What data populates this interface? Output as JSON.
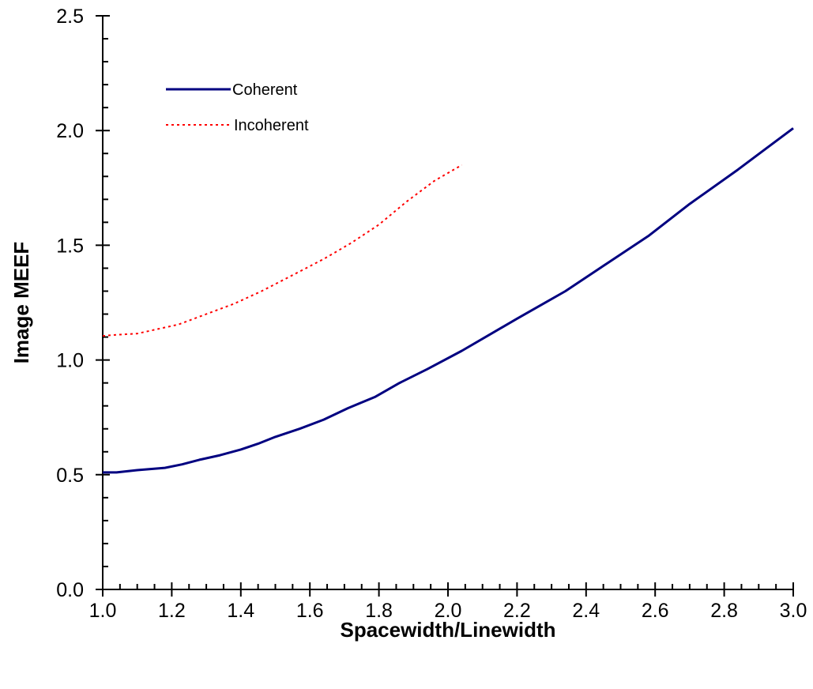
{
  "chart_data": {
    "type": "line",
    "title": "",
    "xlabel": "Spacewidth/Linewidth",
    "ylabel": "Image MEEF",
    "xlim": [
      1.0,
      3.0
    ],
    "ylim": [
      0.0,
      2.5
    ],
    "x_ticks": [
      "1.0",
      "1.2",
      "1.4",
      "1.6",
      "1.8",
      "2.0",
      "2.2",
      "2.4",
      "2.6",
      "2.8",
      "3.0"
    ],
    "y_ticks": [
      "0.0",
      "0.5",
      "1.0",
      "1.5",
      "2.0",
      "2.5"
    ],
    "grid": false,
    "legend_position": "top-left",
    "series": [
      {
        "name": "Coherent",
        "color": "#000080",
        "style": "solid",
        "x": [
          1.0,
          1.04,
          1.1,
          1.18,
          1.23,
          1.28,
          1.34,
          1.4,
          1.45,
          1.5,
          1.57,
          1.64,
          1.71,
          1.79,
          1.86,
          1.94,
          2.04,
          2.12,
          2.2,
          2.34,
          2.46,
          2.58,
          2.7,
          2.84,
          2.92,
          3.0
        ],
        "y": [
          0.51,
          0.51,
          0.52,
          0.53,
          0.545,
          0.565,
          0.585,
          0.61,
          0.635,
          0.665,
          0.7,
          0.74,
          0.79,
          0.84,
          0.9,
          0.96,
          1.04,
          1.11,
          1.18,
          1.3,
          1.42,
          1.54,
          1.68,
          1.83,
          1.92,
          2.01
        ]
      },
      {
        "name": "Incoherent",
        "color": "#ff0000",
        "style": "dotted",
        "x": [
          1.0,
          1.04,
          1.1,
          1.16,
          1.22,
          1.3,
          1.38,
          1.46,
          1.55,
          1.64,
          1.72,
          1.8,
          1.88,
          1.96,
          2.04
        ],
        "y": [
          1.105,
          1.11,
          1.115,
          1.135,
          1.155,
          1.2,
          1.245,
          1.3,
          1.37,
          1.44,
          1.51,
          1.59,
          1.69,
          1.78,
          1.85
        ]
      }
    ]
  }
}
